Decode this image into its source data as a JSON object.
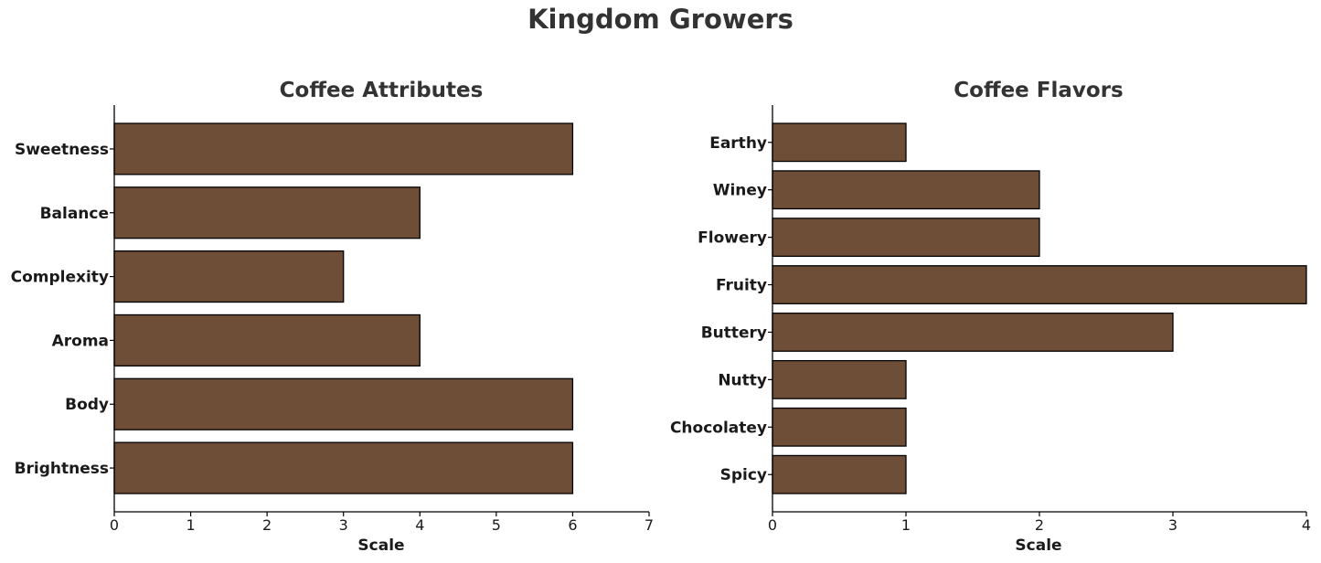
{
  "figure": {
    "title": "Kingdom Growers"
  },
  "colors": {
    "bar": "#6f4e37",
    "bar_edge": "#000000"
  },
  "chart_data": [
    {
      "type": "bar",
      "orientation": "horizontal",
      "title": "Coffee Attributes",
      "xlabel": "Scale",
      "ylabel": "",
      "categories": [
        "Sweetness",
        "Balance",
        "Complexity",
        "Aroma",
        "Body",
        "Brightness"
      ],
      "values": [
        6,
        4,
        3,
        4,
        6,
        6
      ],
      "xlim": [
        0,
        7
      ],
      "xticks": [
        0,
        1,
        2,
        3,
        4,
        5,
        6,
        7
      ],
      "grid": false,
      "legend": "none"
    },
    {
      "type": "bar",
      "orientation": "horizontal",
      "title": "Coffee Flavors",
      "xlabel": "Scale",
      "ylabel": "",
      "categories": [
        "Earthy",
        "Winey",
        "Flowery",
        "Fruity",
        "Buttery",
        "Nutty",
        "Chocolatey",
        "Spicy"
      ],
      "values": [
        1,
        2,
        2,
        4,
        3,
        1,
        1,
        1
      ],
      "xlim": [
        0,
        4
      ],
      "xticks": [
        0,
        1,
        2,
        3,
        4
      ],
      "grid": false,
      "legend": "none"
    }
  ]
}
